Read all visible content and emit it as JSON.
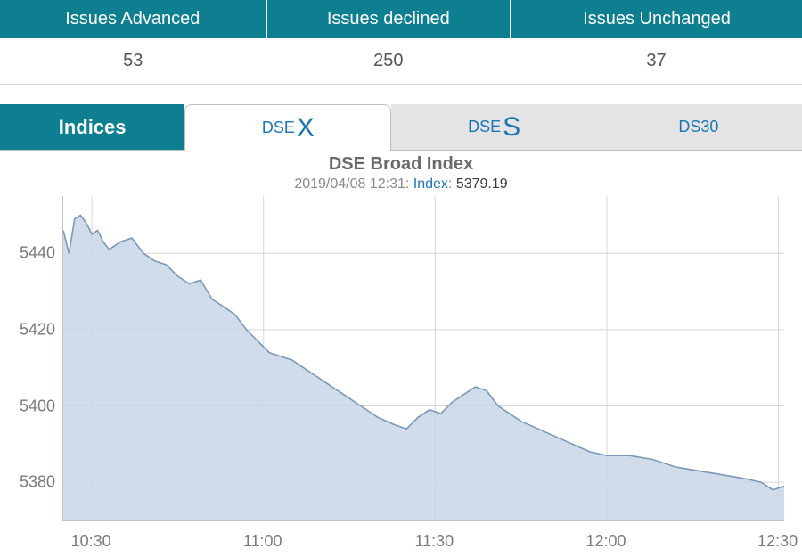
{
  "issues": {
    "headers": [
      "Issues Advanced",
      "Issues declined",
      "Issues Unchanged"
    ],
    "values": [
      53,
      250,
      37
    ],
    "header_bg": "#0e7f91",
    "header_fg": "#ffffff"
  },
  "tabs": {
    "indices_label": "Indices",
    "items": [
      {
        "pre": "DSE",
        "main": "X",
        "active": true
      },
      {
        "pre": "DSE",
        "main": "S",
        "active": false
      },
      {
        "pre": "DS30",
        "main": "",
        "active": false
      }
    ],
    "active_bg": "#ffffff",
    "inactive_bg": "#e4e4e4",
    "indices_bg": "#0e7f91",
    "label_color": "#1976b4"
  },
  "chart": {
    "type": "area",
    "title": "DSE Broad Index",
    "subtitle_timestamp": "2019/04/08 12:31",
    "subtitle_label": "Index",
    "subtitle_value": "5379.19",
    "title_fontsize": 20,
    "subtitle_fontsize": 16,
    "x_time_start_min": 625,
    "x_time_end_min": 751,
    "x_ticks_min": [
      630,
      660,
      690,
      720,
      750
    ],
    "x_tick_labels": [
      "10:30",
      "11:00",
      "11:30",
      "12:00",
      "12:30"
    ],
    "ylim": [
      5370,
      5455
    ],
    "y_ticks": [
      5380,
      5400,
      5420,
      5440
    ],
    "grid_color": "#d7d7d7",
    "line_color": "#7a99b8",
    "line_width": 1.6,
    "fill_color": "#c8d6e5",
    "fill_opacity": 0.85,
    "background_color": "#ffffff",
    "axis_label_color": "#7a7a7a",
    "axis_fontsize": 18,
    "series": [
      [
        625,
        5446
      ],
      [
        626,
        5440
      ],
      [
        627,
        5449
      ],
      [
        628,
        5450
      ],
      [
        629,
        5448
      ],
      [
        630,
        5445
      ],
      [
        631,
        5446
      ],
      [
        632,
        5443
      ],
      [
        633,
        5441
      ],
      [
        635,
        5443
      ],
      [
        637,
        5444
      ],
      [
        639,
        5440
      ],
      [
        641,
        5438
      ],
      [
        643,
        5437
      ],
      [
        645,
        5434
      ],
      [
        647,
        5432
      ],
      [
        649,
        5433
      ],
      [
        651,
        5428
      ],
      [
        653,
        5426
      ],
      [
        655,
        5424
      ],
      [
        657,
        5420
      ],
      [
        659,
        5417
      ],
      [
        661,
        5414
      ],
      [
        663,
        5413
      ],
      [
        665,
        5412
      ],
      [
        668,
        5409
      ],
      [
        671,
        5406
      ],
      [
        674,
        5403
      ],
      [
        677,
        5400
      ],
      [
        680,
        5397
      ],
      [
        683,
        5395
      ],
      [
        685,
        5394
      ],
      [
        687,
        5397
      ],
      [
        689,
        5399
      ],
      [
        691,
        5398
      ],
      [
        693,
        5401
      ],
      [
        695,
        5403
      ],
      [
        697,
        5405
      ],
      [
        699,
        5404
      ],
      [
        701,
        5400
      ],
      [
        703,
        5398
      ],
      [
        705,
        5396
      ],
      [
        708,
        5394
      ],
      [
        711,
        5392
      ],
      [
        714,
        5390
      ],
      [
        717,
        5388
      ],
      [
        720,
        5387
      ],
      [
        724,
        5387
      ],
      [
        728,
        5386
      ],
      [
        732,
        5384
      ],
      [
        736,
        5383
      ],
      [
        740,
        5382
      ],
      [
        744,
        5381
      ],
      [
        747,
        5380
      ],
      [
        749,
        5378
      ],
      [
        751,
        5379
      ]
    ]
  }
}
